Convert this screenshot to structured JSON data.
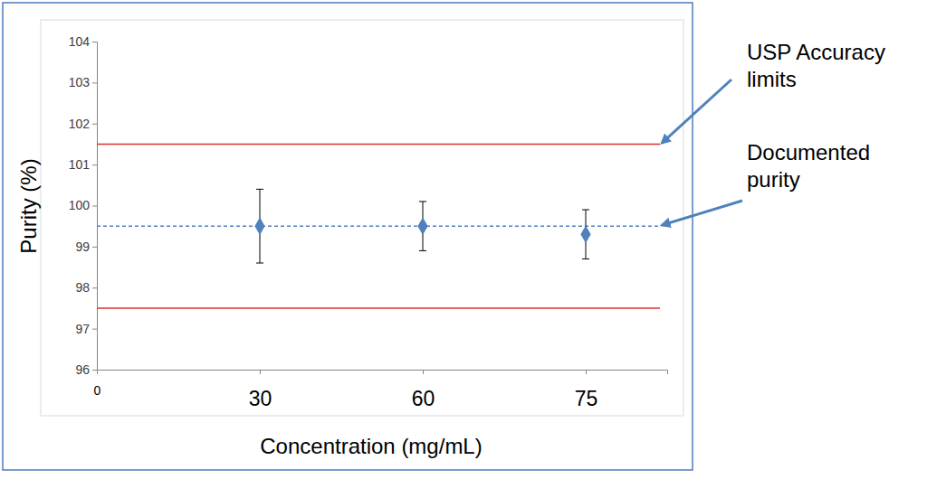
{
  "chart_data": {
    "type": "scatter",
    "x_label": "Concentration (mg/mL)",
    "y_label": "Purity (%)",
    "categories": [
      "0",
      "30",
      "60",
      "75"
    ],
    "values": [
      null,
      99.5,
      99.5,
      99.3
    ],
    "errors": [
      null,
      0.9,
      0.6,
      0.6
    ],
    "color": "#4f81bd",
    "marker": "diamond",
    "ylim": [
      96,
      104
    ],
    "yticks": [
      96,
      97,
      98,
      99,
      100,
      101,
      102,
      103,
      104
    ],
    "grid": false,
    "annotations": [
      {
        "text": "USP Accuracy limits",
        "values": [
          97.5,
          101.5
        ],
        "color": "#e0302e",
        "line_style": "solid"
      },
      {
        "text": "Documented purity",
        "values": [
          99.5
        ],
        "color": "#4f81bd",
        "line_style": "dashed"
      }
    ]
  }
}
